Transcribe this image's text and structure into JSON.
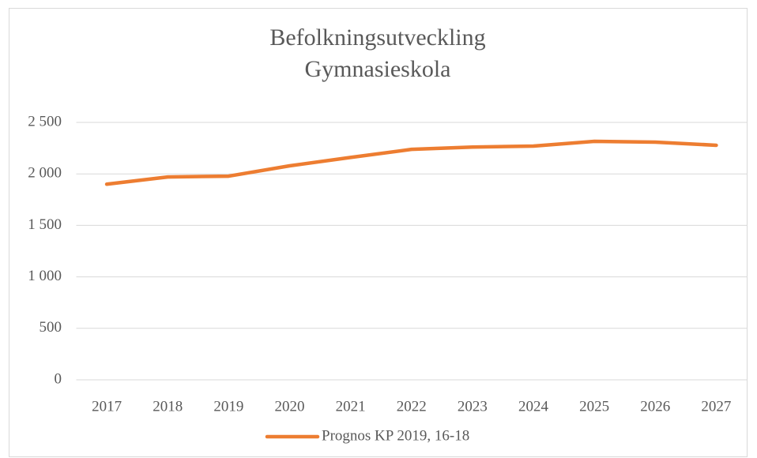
{
  "chart_data": {
    "type": "line",
    "title": [
      "Befolkningsutveckling",
      "Gymnasieskola"
    ],
    "categories": [
      "2017",
      "2018",
      "2019",
      "2020",
      "2021",
      "2022",
      "2023",
      "2024",
      "2025",
      "2026",
      "2027"
    ],
    "series": [
      {
        "name": "Prognos KP 2019, 16-18",
        "color": "#ed7d31",
        "values": [
          1900,
          1970,
          1978,
          2078,
          2160,
          2238,
          2260,
          2270,
          2316,
          2308,
          2278
        ]
      }
    ],
    "ylim": [
      0,
      2500
    ],
    "yticks": [
      0,
      500,
      {
        "value": 1000,
        "label": "1 000"
      },
      {
        "value": 1500,
        "label": "1 500"
      },
      {
        "value": 2000,
        "label": "2 000"
      },
      {
        "value": 2500,
        "label": "2 500"
      }
    ],
    "grid": true,
    "legend": "bottom"
  }
}
